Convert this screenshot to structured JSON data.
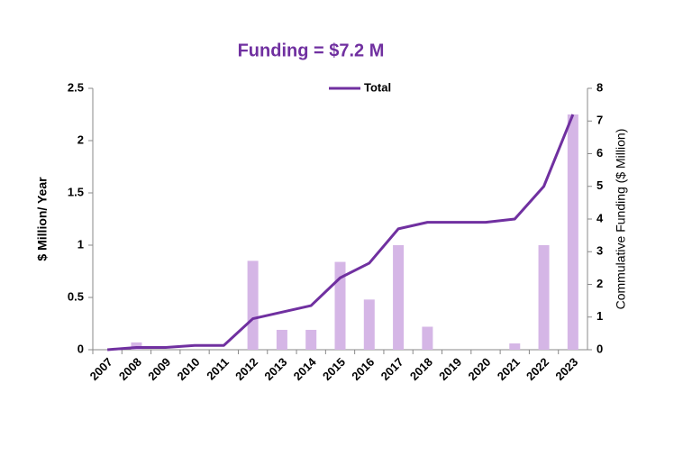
{
  "chart_data": {
    "type": "bar-line",
    "title": "Funding = $7.2 M",
    "ylabel": "$ Million/ Year",
    "y2label": "Commulative Funding ($ Million)",
    "categories": [
      "2007",
      "2008",
      "2009",
      "2010",
      "2011",
      "2012",
      "2013",
      "2014",
      "2015",
      "2016",
      "2017",
      "2018",
      "2019",
      "2020",
      "2021",
      "2022",
      "2023"
    ],
    "series": [
      {
        "type": "bar",
        "color": "#d5b6e6",
        "values": [
          0,
          0.07,
          0,
          0,
          0,
          0.85,
          0.19,
          0.19,
          0.84,
          0.48,
          1.0,
          0.22,
          0,
          0,
          0.06,
          1.0,
          2.25
        ]
      },
      {
        "type": "line",
        "name": "Total",
        "axis": "y2",
        "color": "#7030a0",
        "values": [
          0,
          0.07,
          0.07,
          0.13,
          0.13,
          0.95,
          1.15,
          1.35,
          2.2,
          2.65,
          3.7,
          3.9,
          3.9,
          3.9,
          4.0,
          5.0,
          7.2
        ]
      }
    ],
    "ylim": [
      0,
      2.5
    ],
    "yticks": [
      0,
      0.5,
      1,
      1.5,
      2,
      2.5
    ],
    "y2lim": [
      0,
      8
    ],
    "y2ticks": [
      0,
      1,
      2,
      3,
      4,
      5,
      6,
      7,
      8
    ],
    "grid": false,
    "legend": "top"
  }
}
